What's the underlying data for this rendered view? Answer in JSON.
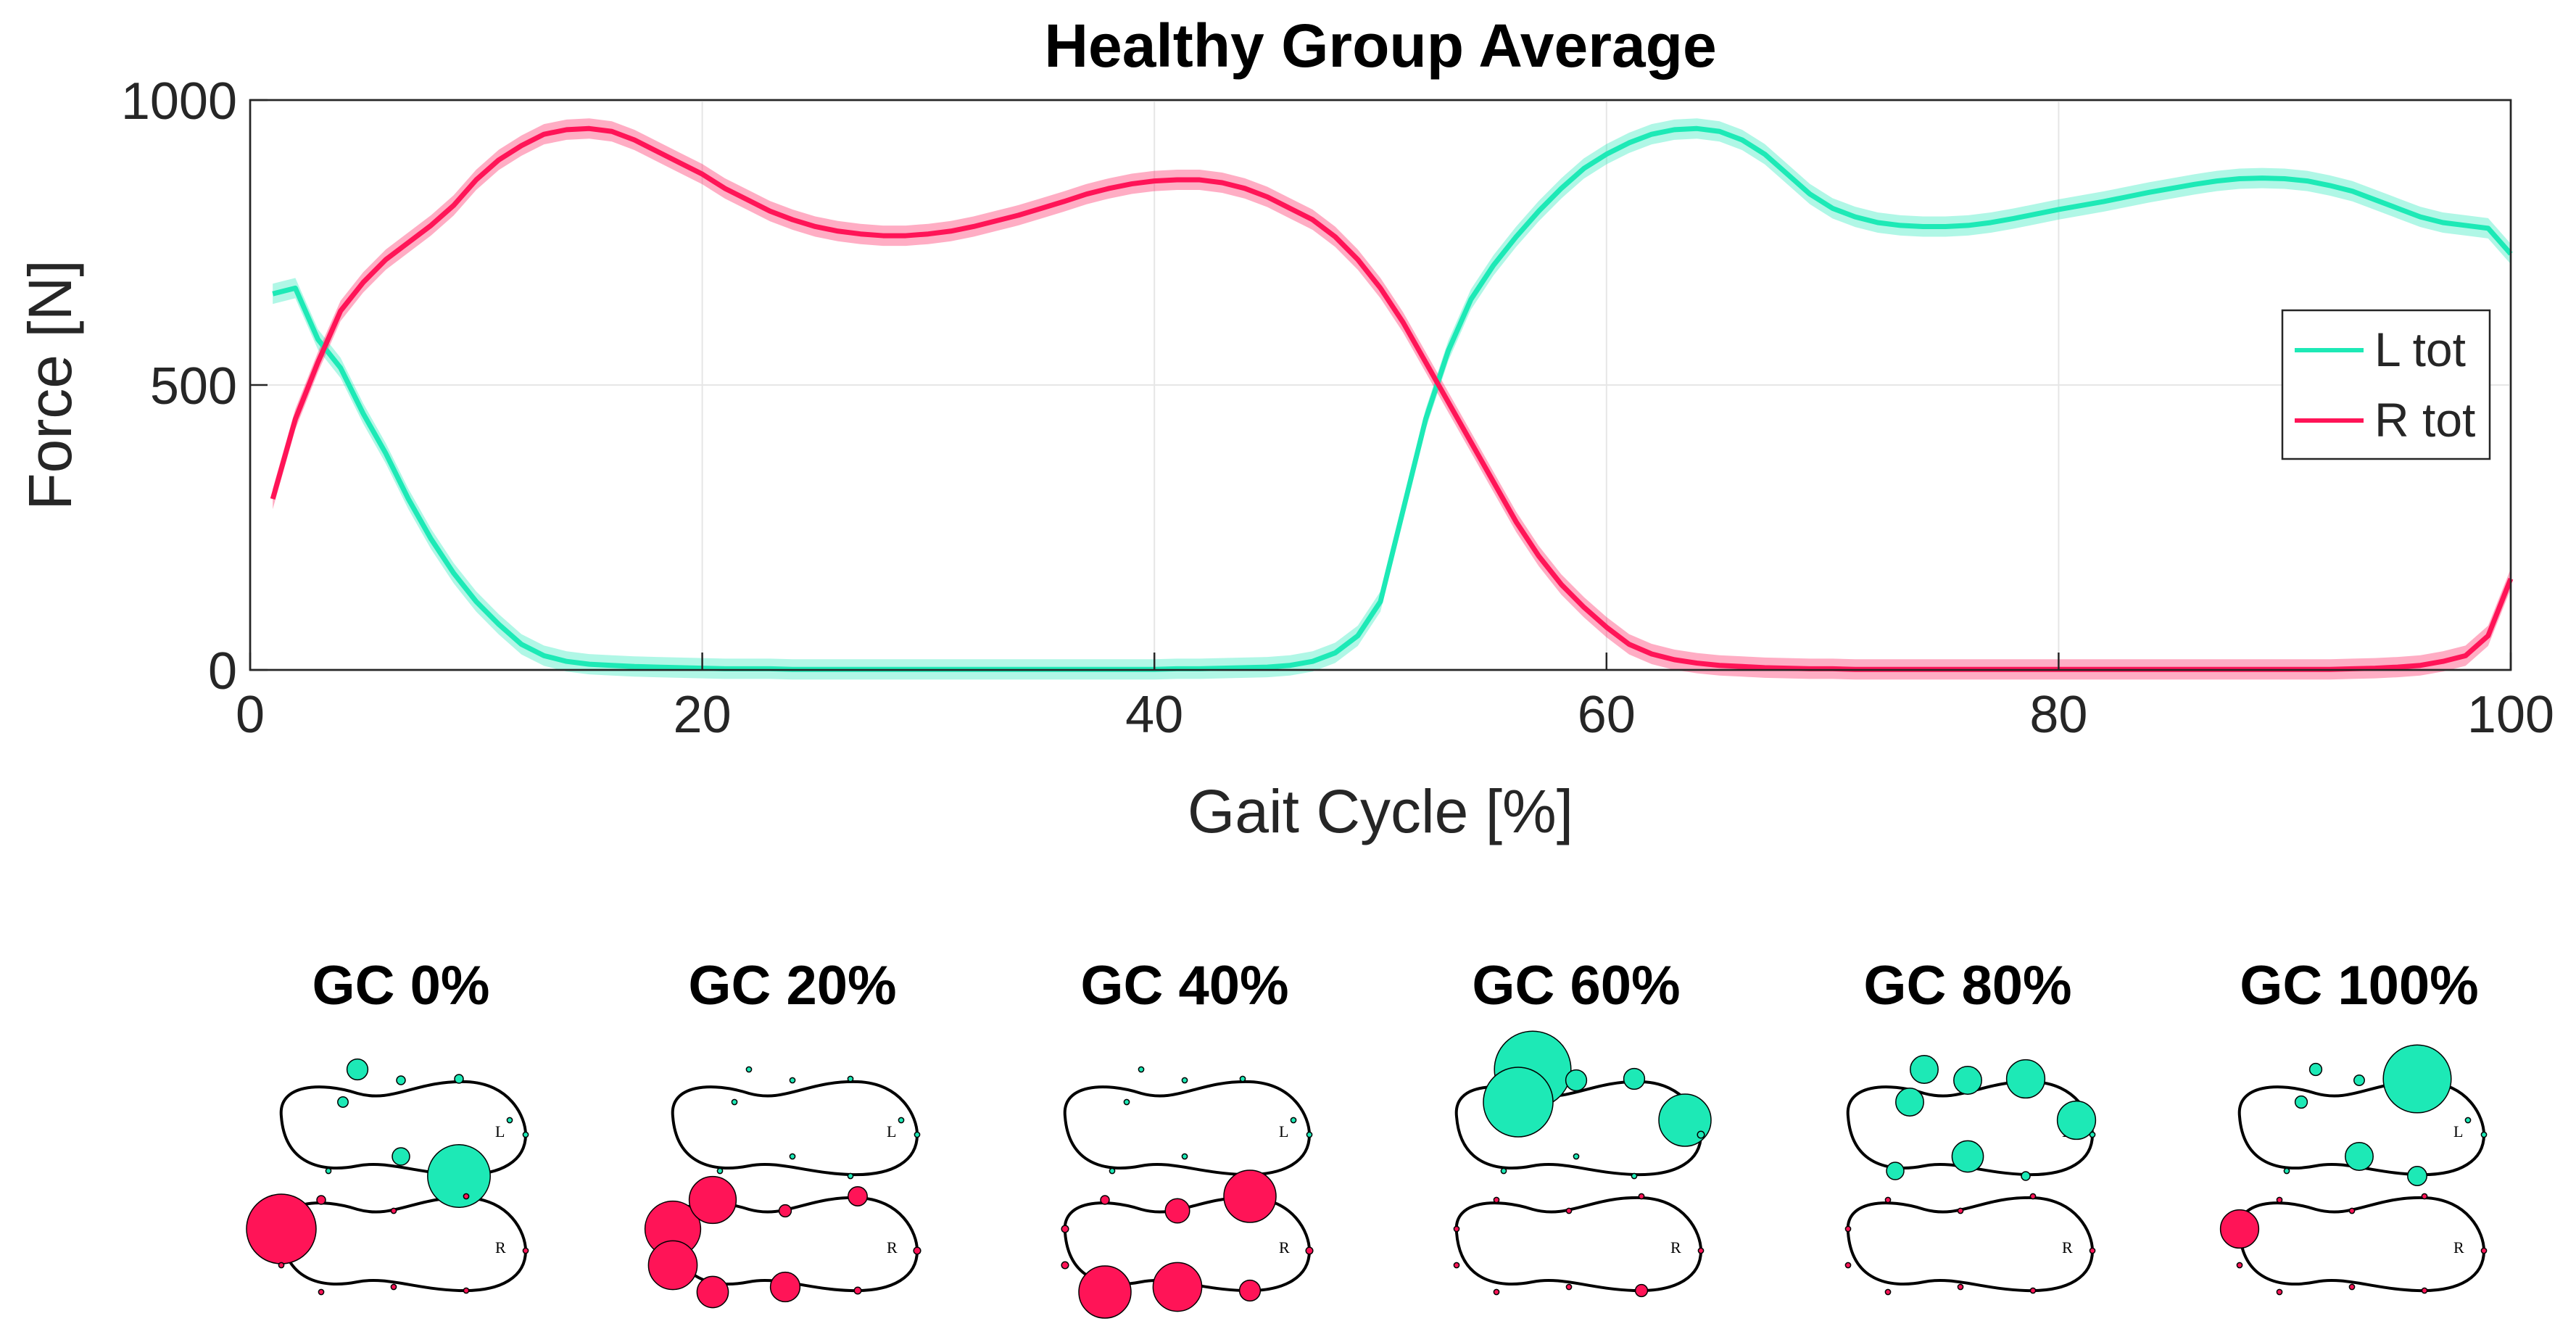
{
  "chart_data": {
    "type": "line",
    "title": "Healthy Group Average",
    "xlabel": "Gait Cycle [%]",
    "ylabel": "Force [N]",
    "xlim": [
      0,
      100
    ],
    "ylim": [
      0,
      1000
    ],
    "xticks": [
      0,
      20,
      40,
      60,
      80,
      100
    ],
    "yticks": [
      0,
      500,
      1000
    ],
    "grid": true,
    "legend_position": "right",
    "x": [
      1,
      2,
      3,
      4,
      5,
      6,
      7,
      8,
      9,
      10,
      11,
      12,
      13,
      14,
      15,
      16,
      17,
      18,
      19,
      20,
      21,
      22,
      23,
      24,
      25,
      26,
      27,
      28,
      29,
      30,
      31,
      32,
      33,
      34,
      35,
      36,
      37,
      38,
      39,
      40,
      41,
      42,
      43,
      44,
      45,
      46,
      47,
      48,
      49,
      50,
      51,
      52,
      53,
      54,
      55,
      56,
      57,
      58,
      59,
      60,
      61,
      62,
      63,
      64,
      65,
      66,
      67,
      68,
      69,
      70,
      71,
      72,
      73,
      74,
      75,
      76,
      77,
      78,
      79,
      80,
      81,
      82,
      83,
      84,
      85,
      86,
      87,
      88,
      89,
      90,
      91,
      92,
      93,
      94,
      95,
      96,
      97,
      98,
      99,
      100
    ],
    "series": [
      {
        "name": "L tot",
        "color": "#1de9b6",
        "values": [
          660,
          670,
          580,
          530,
          450,
          380,
          300,
          230,
          170,
          120,
          80,
          45,
          25,
          15,
          10,
          8,
          6,
          5,
          4,
          3,
          2,
          2,
          2,
          1,
          1,
          1,
          1,
          1,
          1,
          1,
          1,
          1,
          1,
          1,
          1,
          1,
          1,
          1,
          1,
          1,
          2,
          2,
          3,
          4,
          5,
          8,
          15,
          30,
          60,
          120,
          280,
          440,
          560,
          650,
          710,
          760,
          805,
          845,
          880,
          905,
          925,
          940,
          948,
          950,
          945,
          930,
          905,
          870,
          835,
          810,
          795,
          785,
          780,
          778,
          778,
          780,
          785,
          792,
          800,
          808,
          815,
          822,
          830,
          838,
          845,
          852,
          858,
          862,
          863,
          862,
          858,
          850,
          840,
          825,
          810,
          795,
          785,
          780,
          775,
          730
        ]
      },
      {
        "name": "R tot",
        "color": "#ff1457",
        "values": [
          300,
          440,
          540,
          630,
          680,
          720,
          750,
          780,
          815,
          860,
          895,
          920,
          940,
          948,
          950,
          945,
          930,
          910,
          890,
          870,
          845,
          825,
          805,
          790,
          778,
          770,
          765,
          762,
          762,
          765,
          770,
          778,
          788,
          798,
          810,
          822,
          835,
          845,
          853,
          858,
          860,
          860,
          855,
          845,
          830,
          810,
          790,
          760,
          720,
          670,
          610,
          540,
          470,
          400,
          330,
          260,
          200,
          150,
          110,
          75,
          45,
          28,
          18,
          12,
          8,
          6,
          4,
          3,
          2,
          2,
          1,
          1,
          1,
          1,
          1,
          1,
          1,
          1,
          1,
          1,
          1,
          1,
          1,
          1,
          1,
          1,
          1,
          1,
          1,
          1,
          1,
          1,
          2,
          3,
          5,
          8,
          15,
          25,
          60,
          160
        ]
      }
    ]
  },
  "panels": {
    "items": [
      {
        "label": "GC 0%"
      },
      {
        "label": "GC 20%"
      },
      {
        "label": "GC 40%"
      },
      {
        "label": "GC 60%"
      },
      {
        "label": "GC 80%"
      },
      {
        "label": "GC 100%"
      }
    ],
    "left_foot_label": "L",
    "right_foot_label": "R",
    "left_color": "#1de9b6",
    "right_color": "#ff1457",
    "sensor_radii": [
      {
        "L": [
          1.2,
          0.6,
          0.5,
          0.5,
          0.3,
          0.3,
          1.0,
          3.6,
          0.3
        ],
        "R": [
          4.0,
          0.5,
          0.3,
          0.3,
          0.3,
          0.3,
          0.3,
          0.3,
          0.3
        ]
      },
      {
        "L": [
          0.3,
          0.3,
          0.3,
          0.3,
          0.3,
          0.3,
          0.3,
          0.3,
          0.3
        ],
        "R": [
          3.2,
          2.7,
          0.7,
          1.1,
          2.8,
          1.8,
          1.7,
          0.4,
          0.4
        ]
      },
      {
        "L": [
          0.3,
          0.3,
          0.3,
          0.3,
          0.3,
          0.3,
          0.3,
          0.3,
          0.3
        ],
        "R": [
          0.4,
          0.5,
          1.4,
          3.0,
          0.4,
          3.0,
          2.8,
          1.2,
          0.4
        ]
      },
      {
        "L": [
          4.4,
          4.0,
          1.2,
          1.2,
          3.0,
          0.3,
          0.3,
          0.3,
          0.4
        ],
        "R": [
          0.3,
          0.3,
          0.3,
          0.3,
          0.3,
          0.3,
          0.3,
          0.7,
          0.3
        ]
      },
      {
        "L": [
          1.6,
          1.6,
          1.6,
          2.2,
          2.2,
          1.0,
          1.8,
          0.5,
          0.3
        ],
        "R": [
          0.3,
          0.3,
          0.3,
          0.3,
          0.3,
          0.3,
          0.3,
          0.3,
          0.3
        ]
      },
      {
        "L": [
          0.7,
          0.7,
          0.6,
          3.9,
          0.3,
          0.3,
          1.6,
          1.1,
          0.3
        ],
        "R": [
          2.2,
          0.3,
          0.3,
          0.3,
          0.3,
          0.3,
          0.3,
          0.3,
          0.3
        ]
      }
    ]
  }
}
